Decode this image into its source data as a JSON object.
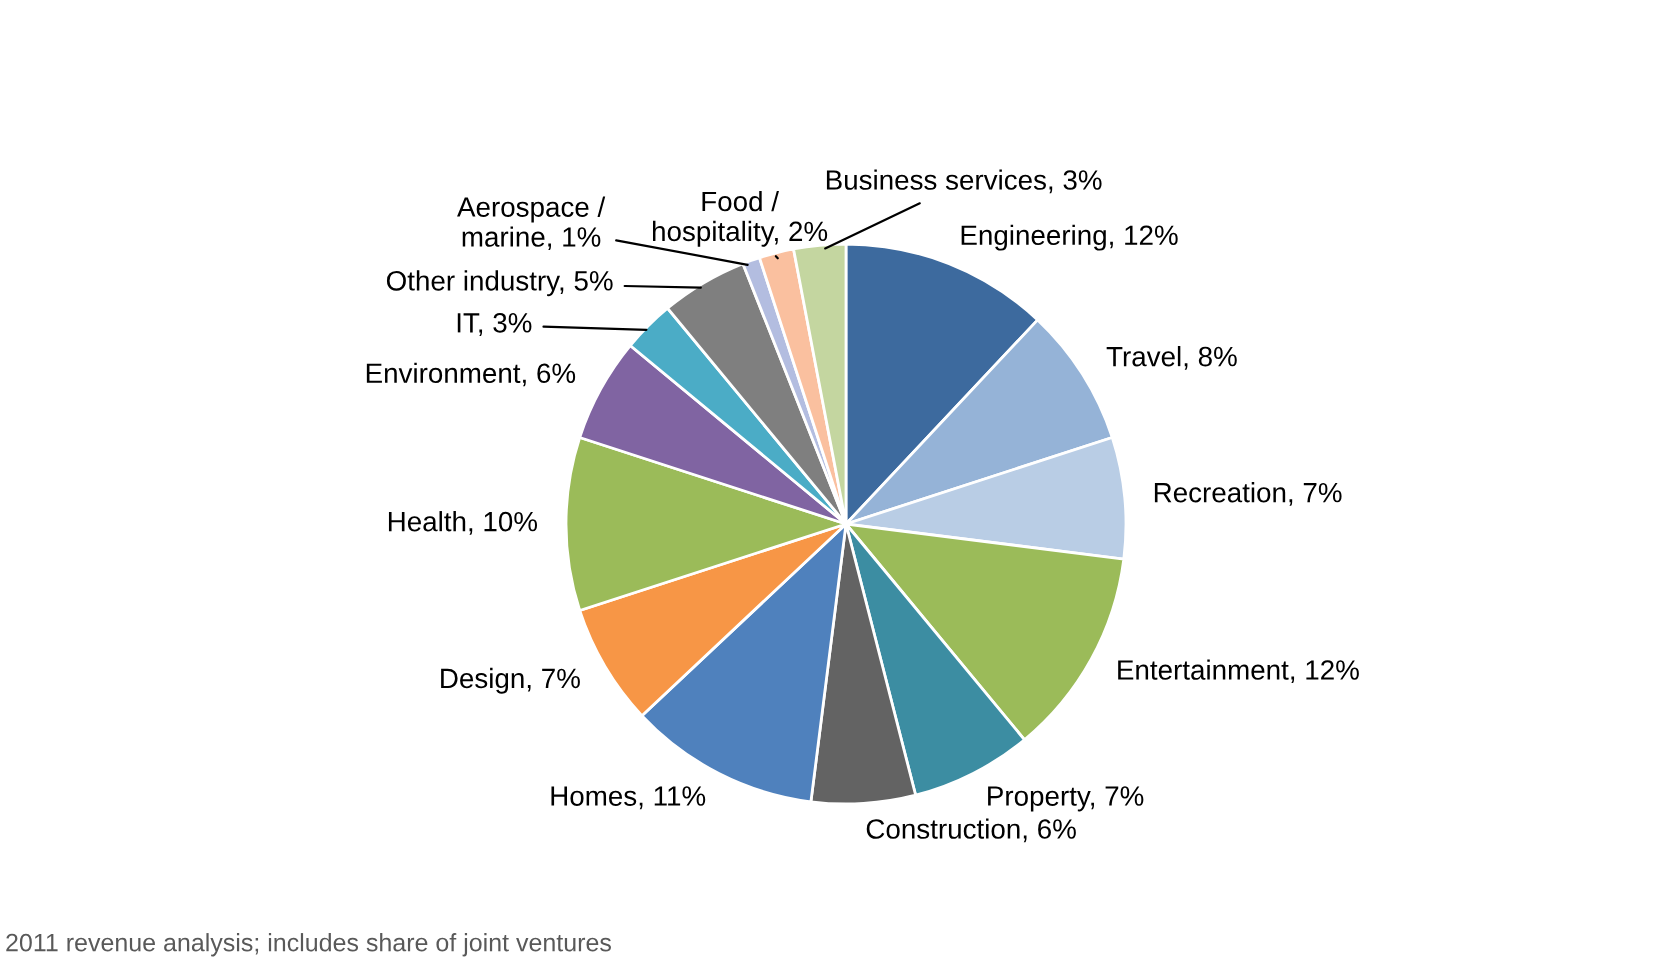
{
  "chart_data": {
    "type": "pie",
    "categories": [
      "Engineering",
      "Travel",
      "Recreation",
      "Entertainment",
      "Property",
      "Construction",
      "Homes",
      "Design",
      "Health",
      "Environment",
      "IT",
      "Other industry",
      "Aerospace /\nmarine",
      "Food /\nhospitality",
      "Business services"
    ],
    "values": [
      12,
      8,
      7,
      12,
      7,
      6,
      11,
      7,
      10,
      6,
      3,
      5,
      1,
      2,
      3
    ],
    "value_labels": [
      "12%",
      "8%",
      "7%",
      "12%",
      "7%",
      "6%",
      "11%",
      "7%",
      "10%",
      "6%",
      "3%",
      "5%",
      "1%",
      "2%",
      "3%"
    ],
    "colors": [
      "#3d6a9e",
      "#95b3d7",
      "#b9cde5",
      "#9bbb59",
      "#3c8da2",
      "#636363",
      "#4f81bd",
      "#f79646",
      "#9bbb59",
      "#8064a2",
      "#4bacc6",
      "#7f7f7f",
      "#b3bde0",
      "#fac09f",
      "#c4d6a0"
    ],
    "annotations": [
      "2011 revenue analysis; includes share of joint ventures"
    ]
  }
}
